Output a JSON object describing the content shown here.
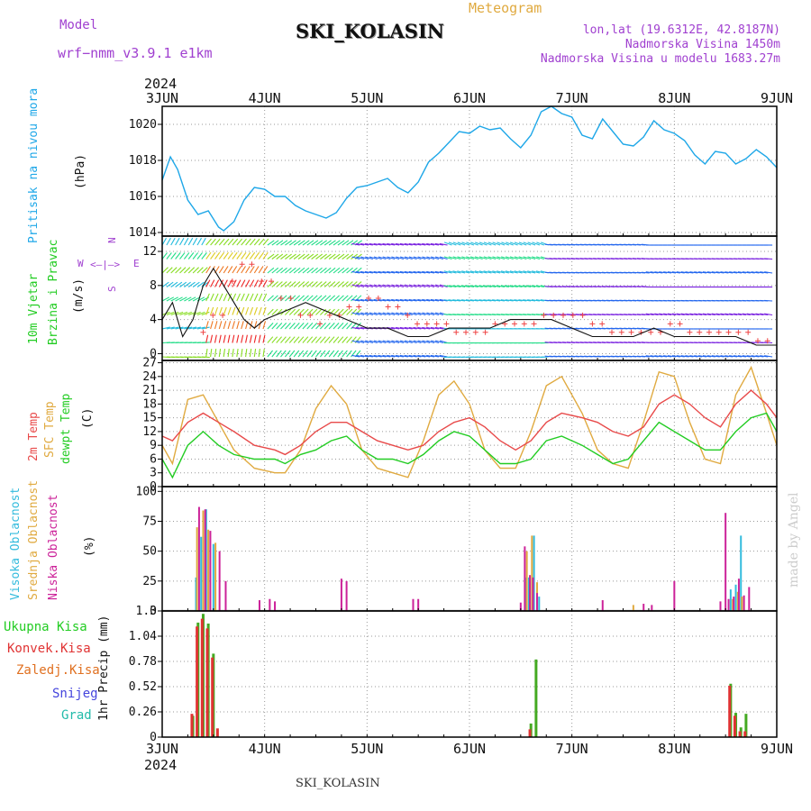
{
  "header": {
    "model_label": "Model",
    "model_value": "wrf−nmm_v3.9.1  e1km",
    "title": "SKI_KOLASIN",
    "app_title": "Meteogram",
    "lonlat": "lon,lat (19.6312E, 42.8187N)",
    "elevation": "Nadmorska Visina 1450m",
    "model_elevation": "Nadmorska Visina u modelu 1683.27m",
    "year_top": "2024",
    "year_bottom": "2024",
    "footer_station": "SKI_KOLASIN",
    "credit": "made by Angel"
  },
  "colors": {
    "pressure": "#1ea7e8",
    "temp2m": "#e84a4a",
    "sfc": "#e0aa40",
    "dewpt": "#22cc22",
    "high_cloud": "#33bbdd",
    "mid_cloud": "#e0aa40",
    "low_cloud": "#cc2299",
    "precip_total": "#44aa22",
    "precip_conv": "#e03333",
    "precip_frozen": "#e07020",
    "snow": "#4444dd",
    "hail": "#22bbaa",
    "purple_text": "#a040d0",
    "orange_text": "#e0aa40"
  },
  "chart_data": [
    {
      "type": "line",
      "panel": "pressure",
      "ylabel_a": "Pritisak na nivou mora",
      "ylabel_b": "(hPa)",
      "x_ticks": [
        "3JUN",
        "4JUN",
        "5JUN",
        "6JUN",
        "7JUN",
        "8JUN",
        "9JUN"
      ],
      "y_ticks": [
        1014,
        1016,
        1018,
        1020
      ],
      "ylim": [
        1013.8,
        1021.0
      ],
      "grid": true,
      "series": [
        {
          "values_note": "hourly, day 0-6",
          "x": [
            0,
            0.08,
            0.15,
            0.25,
            0.35,
            0.45,
            0.55,
            0.6,
            0.7,
            0.8,
            0.9,
            1.0,
            1.1,
            1.2,
            1.3,
            1.4,
            1.5,
            1.6,
            1.7,
            1.8,
            1.9,
            2.0,
            2.1,
            2.2,
            2.3,
            2.4,
            2.5,
            2.6,
            2.7,
            2.8,
            2.9,
            3.0,
            3.1,
            3.2,
            3.3,
            3.4,
            3.5,
            3.6,
            3.7,
            3.8,
            3.9,
            4.0,
            4.1,
            4.2,
            4.3,
            4.4,
            4.5,
            4.6,
            4.7,
            4.8,
            4.9,
            5.0,
            5.1,
            5.2,
            5.3,
            5.4,
            5.5,
            5.6,
            5.7,
            5.8,
            5.9,
            6.0
          ],
          "values": [
            1016.9,
            1018.2,
            1017.5,
            1015.8,
            1015.0,
            1015.2,
            1014.3,
            1014.1,
            1014.6,
            1015.8,
            1016.5,
            1016.4,
            1016.0,
            1016.0,
            1015.5,
            1015.2,
            1015.0,
            1014.8,
            1015.1,
            1015.9,
            1016.5,
            1016.6,
            1016.8,
            1017.0,
            1016.5,
            1016.2,
            1016.8,
            1017.9,
            1018.4,
            1019.0,
            1019.6,
            1019.5,
            1019.9,
            1019.7,
            1019.8,
            1019.2,
            1018.7,
            1019.4,
            1020.7,
            1021.0,
            1020.6,
            1020.4,
            1019.4,
            1019.2,
            1020.3,
            1019.6,
            1018.9,
            1018.8,
            1019.3,
            1020.2,
            1019.7,
            1019.5,
            1019.1,
            1018.3,
            1017.8,
            1018.5,
            1018.4,
            1017.8,
            1018.1,
            1018.6,
            1018.2,
            1017.6
          ]
        }
      ]
    },
    {
      "type": "line",
      "panel": "wind",
      "ylabel_a": "10m Vjetar",
      "ylabel_b": "Brzina i Pravac",
      "ylabel_c": "(m/s)",
      "compass_w": "W",
      "compass_e": "E",
      "compass_n": "N",
      "compass_s": "S",
      "y_ticks": [
        0,
        4,
        8,
        12
      ],
      "ylim": [
        -0.8,
        13.8
      ],
      "grid": true,
      "series": [
        {
          "name": "wind speed",
          "x": [
            0,
            0.1,
            0.2,
            0.3,
            0.4,
            0.5,
            0.6,
            0.7,
            0.8,
            0.9,
            1.0,
            1.2,
            1.4,
            1.6,
            1.8,
            2.0,
            2.2,
            2.4,
            2.6,
            2.8,
            3.0,
            3.2,
            3.4,
            3.6,
            3.8,
            4.0,
            4.2,
            4.4,
            4.6,
            4.8,
            5.0,
            5.2,
            5.4,
            5.6,
            5.8,
            6.0
          ],
          "values": [
            4,
            6,
            2,
            4,
            8,
            10,
            8,
            6,
            4,
            3,
            4,
            5,
            6,
            5,
            4,
            3,
            3,
            2,
            2,
            3,
            3,
            3,
            4,
            4,
            4,
            3,
            2,
            2,
            2,
            3,
            2,
            2,
            2,
            2,
            1,
            1
          ]
        }
      ]
    },
    {
      "type": "line",
      "panel": "temperature",
      "ylabel_a": "2m Temp",
      "ylabel_b": "SFC Temp",
      "ylabel_c": "dewpt Temp",
      "ylabel_d": "(C)",
      "y_ticks": [
        0,
        3,
        6,
        9,
        12,
        15,
        18,
        21,
        24,
        27
      ],
      "ylim": [
        0,
        27.5
      ],
      "grid": true,
      "series": [
        {
          "name": "2m Temp",
          "x": [
            0,
            0.1,
            0.25,
            0.4,
            0.55,
            0.7,
            0.9,
            1.1,
            1.2,
            1.35,
            1.5,
            1.65,
            1.8,
            1.95,
            2.1,
            2.25,
            2.4,
            2.55,
            2.7,
            2.85,
            3.0,
            3.15,
            3.3,
            3.45,
            3.6,
            3.75,
            3.9,
            4.1,
            4.25,
            4.4,
            4.55,
            4.7,
            4.85,
            5.0,
            5.15,
            5.3,
            5.45,
            5.6,
            5.75,
            5.9,
            6.0
          ],
          "values": [
            11,
            10,
            14,
            16,
            14,
            12,
            9,
            8,
            7,
            9,
            12,
            14,
            14,
            12,
            10,
            9,
            8,
            9,
            12,
            14,
            15,
            13,
            10,
            8,
            10,
            14,
            16,
            15,
            14,
            12,
            11,
            13,
            18,
            20,
            18,
            15,
            13,
            18,
            21,
            18,
            15
          ]
        },
        {
          "name": "SFC Temp",
          "x": [
            0,
            0.1,
            0.25,
            0.4,
            0.55,
            0.7,
            0.9,
            1.1,
            1.2,
            1.35,
            1.5,
            1.65,
            1.8,
            1.95,
            2.1,
            2.25,
            2.4,
            2.55,
            2.7,
            2.85,
            3.0,
            3.15,
            3.3,
            3.45,
            3.6,
            3.75,
            3.9,
            4.1,
            4.25,
            4.4,
            4.55,
            4.7,
            4.85,
            5.0,
            5.15,
            5.3,
            5.45,
            5.6,
            5.75,
            5.9,
            6.0
          ],
          "values": [
            9,
            5,
            19,
            20,
            14,
            8,
            4,
            3,
            3,
            8,
            17,
            22,
            18,
            8,
            4,
            3,
            2,
            10,
            20,
            23,
            18,
            8,
            4,
            4,
            12,
            22,
            24,
            16,
            8,
            5,
            4,
            14,
            25,
            24,
            14,
            6,
            5,
            20,
            26,
            16,
            9
          ]
        },
        {
          "name": "dewpt Temp",
          "x": [
            0,
            0.1,
            0.25,
            0.4,
            0.55,
            0.7,
            0.9,
            1.1,
            1.2,
            1.35,
            1.5,
            1.65,
            1.8,
            1.95,
            2.1,
            2.25,
            2.4,
            2.55,
            2.7,
            2.85,
            3.0,
            3.15,
            3.3,
            3.45,
            3.6,
            3.75,
            3.9,
            4.1,
            4.25,
            4.4,
            4.55,
            4.7,
            4.85,
            5.0,
            5.15,
            5.3,
            5.45,
            5.6,
            5.75,
            5.9,
            6.0
          ],
          "values": [
            6,
            2,
            9,
            12,
            9,
            7,
            6,
            6,
            5,
            7,
            8,
            10,
            11,
            8,
            6,
            6,
            5,
            7,
            10,
            12,
            11,
            8,
            5,
            5,
            6,
            10,
            11,
            9,
            7,
            5,
            6,
            10,
            14,
            12,
            10,
            8,
            8,
            12,
            15,
            16,
            12
          ]
        }
      ]
    },
    {
      "type": "bar",
      "panel": "clouds",
      "ylabel_a": "Visoka Oblacnost",
      "ylabel_b": "Srednja Oblacnost",
      "ylabel_c": "Niska Oblacnost",
      "ylabel_d": "(%)",
      "y_ticks": [
        0,
        25,
        50,
        75,
        100
      ],
      "ylim": [
        0,
        104
      ],
      "grid": true,
      "series": [
        {
          "name": "Visoka Oblacnost",
          "x": [
            0.33,
            0.38,
            0.43,
            0.5,
            3.55,
            3.58,
            3.63,
            3.68,
            5.55,
            5.6,
            5.65
          ],
          "values": [
            28,
            62,
            85,
            56,
            28,
            28,
            63,
            12,
            18,
            22,
            63
          ]
        },
        {
          "name": "Srednja Oblacnost",
          "x": [
            0.34,
            0.4,
            0.45,
            0.52,
            3.56,
            3.61,
            3.66,
            4.6,
            5.57,
            5.62,
            5.66
          ],
          "values": [
            70,
            84,
            68,
            57,
            50,
            63,
            24,
            5,
            10,
            16,
            12
          ]
        },
        {
          "name": "Niska Oblacnost",
          "x": [
            0.36,
            0.42,
            0.47,
            0.56,
            0.62,
            0.95,
            1.05,
            1.1,
            1.75,
            1.8,
            2.45,
            2.5,
            3.5,
            3.54,
            3.59,
            3.62,
            3.66,
            4.3,
            4.7,
            4.78,
            5.0,
            5.45,
            5.5,
            5.53,
            5.58,
            5.63,
            5.68,
            5.73
          ],
          "values": [
            87,
            85,
            67,
            50,
            25,
            9,
            10,
            8,
            27,
            25,
            10,
            10,
            7,
            54,
            30,
            28,
            15,
            9,
            6,
            5,
            25,
            8,
            82,
            10,
            12,
            27,
            13,
            20
          ]
        }
      ]
    },
    {
      "type": "bar",
      "panel": "precip",
      "ylabel_a": "1hr Precip (mm)",
      "legend": [
        "Ukupna Kisa",
        "Konvek.Kisa",
        "Zaledj.Kisa",
        "Snijeg",
        "Grad"
      ],
      "y_ticks": [
        0,
        0.26,
        0.52,
        0.78,
        1.04,
        1.3
      ],
      "y_tick_labels": [
        "0",
        "0.26",
        "0.52",
        "0.78",
        "1.04",
        "1.3"
      ],
      "ylim": [
        0,
        1.3
      ],
      "grid": true,
      "series": [
        {
          "name": "Ukupna Kisa",
          "x": [
            0.3,
            0.35,
            0.4,
            0.45,
            0.5,
            3.6,
            3.65,
            5.55,
            5.6,
            5.65,
            5.7
          ],
          "values": [
            0.22,
            1.18,
            1.27,
            1.17,
            0.86,
            0.14,
            0.8,
            0.55,
            0.25,
            0.1,
            0.24
          ]
        },
        {
          "name": "Konvek.Kisa",
          "x": [
            0.29,
            0.34,
            0.39,
            0.44,
            0.49,
            0.54,
            3.59,
            5.54,
            5.59,
            5.64,
            5.69
          ],
          "values": [
            0.24,
            1.14,
            1.22,
            1.12,
            0.82,
            0.09,
            0.08,
            0.53,
            0.22,
            0.06,
            0.06
          ]
        }
      ]
    }
  ]
}
